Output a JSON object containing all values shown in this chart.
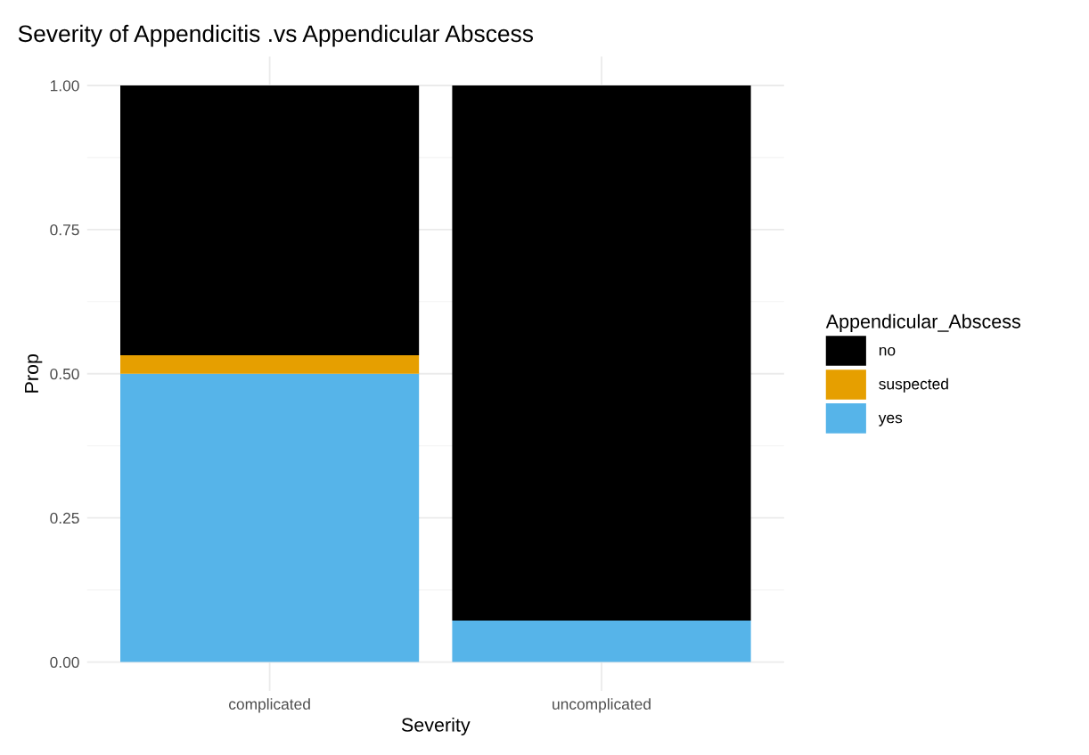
{
  "chart_data": {
    "type": "bar",
    "title": "Severity of Appendicitis .vs Appendicular Abscess",
    "xlabel": "Severity",
    "ylabel": "Prop",
    "legend_title": "Appendicular_Abscess",
    "categories": [
      "complicated",
      "uncomplicated"
    ],
    "stacked": true,
    "series": [
      {
        "name": "yes",
        "color": "#56b4e9",
        "values": [
          0.5,
          0.072
        ]
      },
      {
        "name": "suspected",
        "color": "#e69f00",
        "values": [
          0.032,
          0
        ]
      },
      {
        "name": "no",
        "color": "#000000",
        "values": [
          0.468,
          0.928
        ]
      }
    ],
    "ylim": [
      -0.05,
      1.05
    ],
    "yticks": [
      {
        "value": 0,
        "label": "0.00"
      },
      {
        "value": 0.25,
        "label": "0.25"
      },
      {
        "value": 0.5,
        "label": "0.50"
      },
      {
        "value": 0.75,
        "label": "0.75"
      },
      {
        "value": 1,
        "label": "1.00"
      }
    ],
    "grid": true,
    "legend": "right"
  }
}
